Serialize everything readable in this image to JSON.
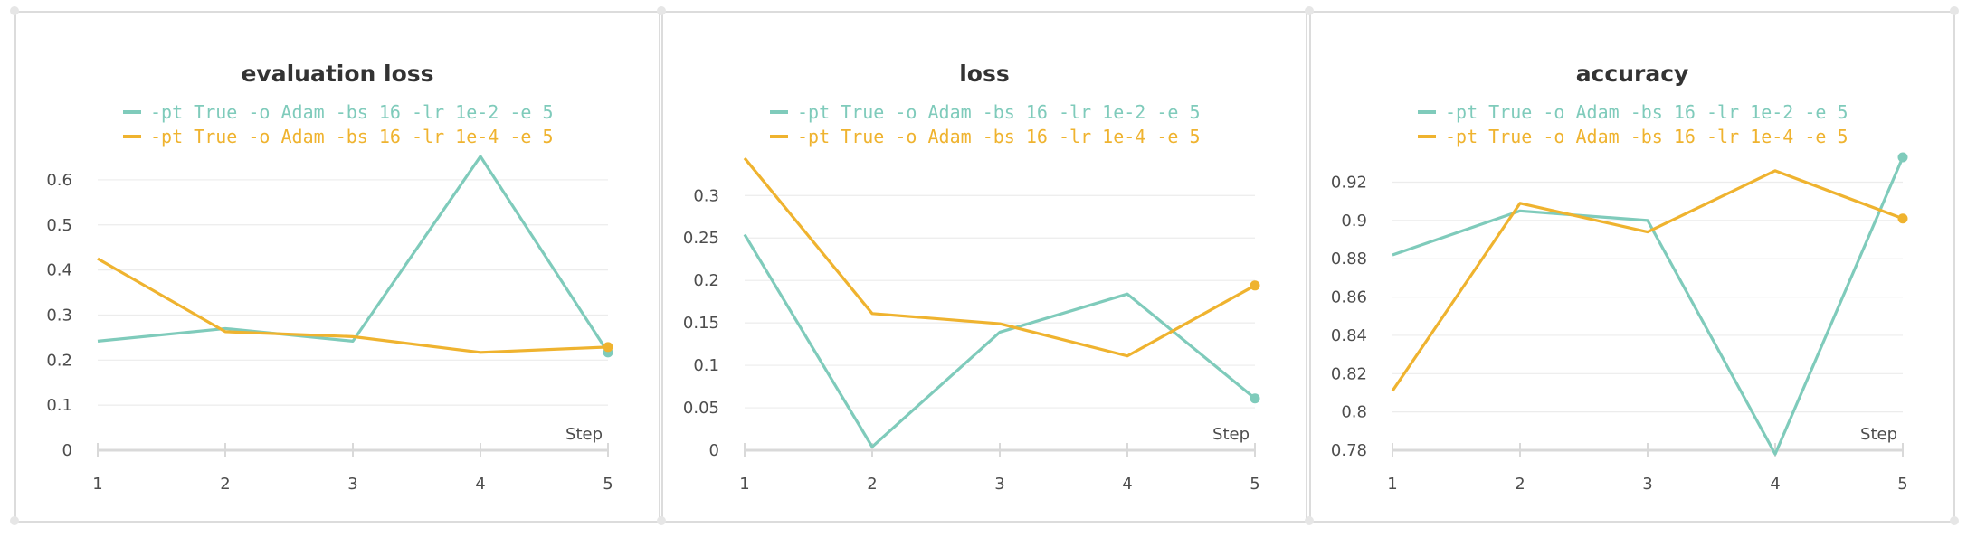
{
  "colors": {
    "series_a": "#7fcbbb",
    "series_b": "#efb32f",
    "grid": "#ececec",
    "axis": "#d9d9d9"
  },
  "chart_data": [
    {
      "type": "line",
      "title": "evaluation loss",
      "xlabel": "Step",
      "x": [
        1,
        2,
        3,
        4,
        5
      ],
      "ylim": [
        0,
        0.65
      ],
      "yticks": [
        0,
        0.1,
        0.2,
        0.3,
        0.4,
        0.5,
        0.6
      ],
      "yticklabels": [
        "0",
        "0.1",
        "0.2",
        "0.3",
        "0.4",
        "0.5",
        "0.6"
      ],
      "legend_position": "top",
      "series": [
        {
          "name": "-pt True -o Adam -bs 16 -lr 1e-2 -e 5",
          "values": [
            0.242,
            0.27,
            0.242,
            0.652,
            0.217
          ]
        },
        {
          "name": "-pt True -o Adam -bs 16 -lr 1e-4 -e 5",
          "values": [
            0.425,
            0.263,
            0.252,
            0.217,
            0.229
          ]
        }
      ]
    },
    {
      "type": "line",
      "title": "loss",
      "xlabel": "Step",
      "x": [
        1,
        2,
        3,
        4,
        5
      ],
      "ylim": [
        0,
        0.345
      ],
      "yticks": [
        0,
        0.05,
        0.1,
        0.15,
        0.2,
        0.25,
        0.3
      ],
      "yticklabels": [
        "0",
        "0.05",
        "0.1",
        "0.15",
        "0.2",
        "0.25",
        "0.3"
      ],
      "legend_position": "top",
      "series": [
        {
          "name": "-pt True -o Adam -bs 16 -lr 1e-2 -e 5",
          "values": [
            0.254,
            0.004,
            0.139,
            0.184,
            0.061
          ]
        },
        {
          "name": "-pt True -o Adam -bs 16 -lr 1e-4 -e 5",
          "values": [
            0.344,
            0.161,
            0.149,
            0.111,
            0.194
          ]
        }
      ]
    },
    {
      "type": "line",
      "title": "accuracy",
      "xlabel": "Step",
      "x": [
        1,
        2,
        3,
        4,
        5
      ],
      "ylim": [
        0.78,
        0.933
      ],
      "yticks": [
        0.78,
        0.8,
        0.82,
        0.84,
        0.86,
        0.88,
        0.9,
        0.92
      ],
      "yticklabels": [
        "0.78",
        "0.8",
        "0.82",
        "0.84",
        "0.86",
        "0.88",
        "0.9",
        "0.92"
      ],
      "legend_position": "top",
      "series": [
        {
          "name": "-pt True -o Adam -bs 16 -lr 1e-2 -e 5",
          "values": [
            0.882,
            0.905,
            0.9,
            0.778,
            0.933
          ]
        },
        {
          "name": "-pt True -o Adam -bs 16 -lr 1e-4 -e 5",
          "values": [
            0.811,
            0.909,
            0.894,
            0.926,
            0.901
          ]
        }
      ]
    }
  ]
}
